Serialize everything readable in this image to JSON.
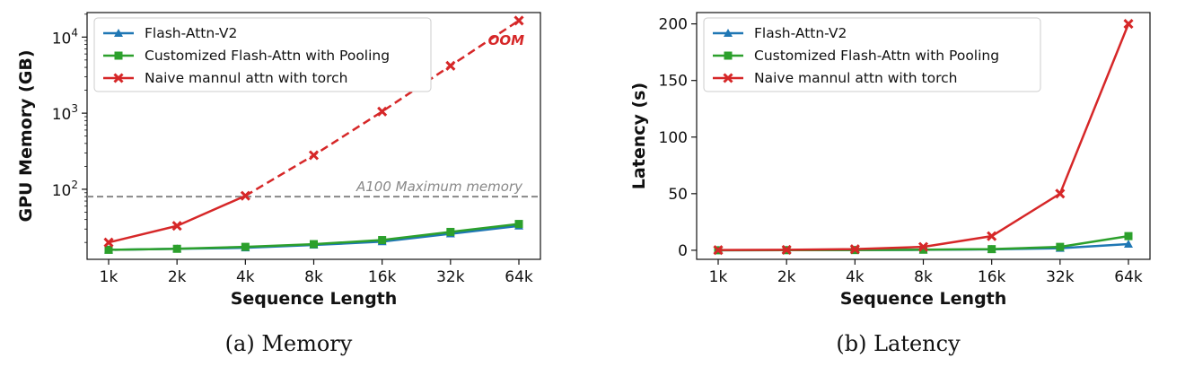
{
  "chart_data": [
    {
      "type": "line",
      "caption": "(a) Memory",
      "xlabel": "Sequence Length",
      "ylabel": "GPU Memory (GB)",
      "yscale": "log",
      "ylim": [
        12,
        21000
      ],
      "yticks": [
        {
          "value": 100,
          "mantissa": "10",
          "exp": "2"
        },
        {
          "value": 1000,
          "mantissa": "10",
          "exp": "3"
        },
        {
          "value": 10000,
          "mantissa": "10",
          "exp": "4"
        }
      ],
      "categories": [
        "1k",
        "2k",
        "4k",
        "8k",
        "16k",
        "32k",
        "64k"
      ],
      "legend_position": "top-left",
      "series": [
        {
          "name": "Flash-Attn-V2",
          "color": "#1f77b4",
          "marker": "triangle",
          "values": [
            16,
            16.5,
            17,
            18.5,
            20.5,
            26,
            33
          ]
        },
        {
          "name": "Customized Flash-Attn with Pooling",
          "color": "#2ca02c",
          "marker": "square",
          "values": [
            16,
            16.5,
            17.5,
            19,
            21.5,
            27.5,
            35
          ]
        },
        {
          "name": "Naive mannul attn with torch",
          "color": "#d62728",
          "marker": "x",
          "values": [
            20,
            33,
            82,
            280,
            1050,
            4200,
            16500
          ],
          "dashed_from_index": 2
        }
      ],
      "reference_line": {
        "value": 80,
        "label": "A100 Maximum memory",
        "color": "#888888"
      },
      "annotation": {
        "text": "OOM"
      }
    },
    {
      "type": "line",
      "caption": "(b) Latency",
      "xlabel": "Sequence Length",
      "ylabel": "Latency (s)",
      "yscale": "linear",
      "ylim": [
        -8,
        210
      ],
      "yticks": [
        0,
        50,
        100,
        150,
        200
      ],
      "categories": [
        "1k",
        "2k",
        "4k",
        "8k",
        "16k",
        "32k",
        "64k"
      ],
      "legend_position": "top-left",
      "series": [
        {
          "name": "Flash-Attn-V2",
          "color": "#1f77b4",
          "marker": "triangle",
          "values": [
            0,
            0.1,
            0.2,
            0.4,
            0.8,
            1.8,
            5.5
          ]
        },
        {
          "name": "Customized Flash-Attn with Pooling",
          "color": "#2ca02c",
          "marker": "square",
          "values": [
            0,
            0.1,
            0.2,
            0.5,
            1.0,
            3.0,
            12.5
          ]
        },
        {
          "name": "Naive mannul attn with torch",
          "color": "#d62728",
          "marker": "x",
          "values": [
            0.2,
            0.4,
            1.0,
            3.0,
            12.5,
            50,
            200
          ]
        }
      ]
    }
  ]
}
